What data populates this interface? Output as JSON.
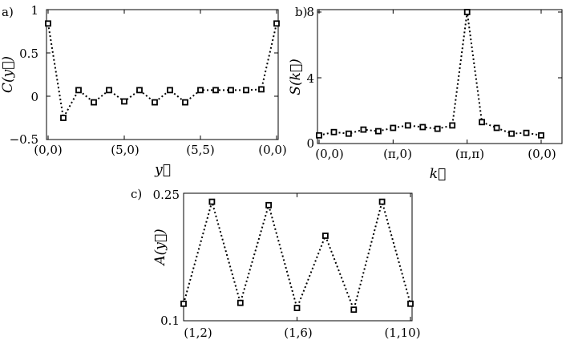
{
  "chart_data": [
    {
      "type": "line",
      "panel_label": "a)",
      "xlabel": "y⃗",
      "ylabel": "C(y⃗)",
      "ylim": [
        -0.5,
        1
      ],
      "y_ticks": [
        "1",
        "0.5",
        "0",
        "−0.5"
      ],
      "y_tick_values": [
        1,
        0.5,
        0,
        -0.5
      ],
      "x_tick_labels": [
        "(0,0)",
        "(5,0)",
        "(5,5)",
        "(0,0)"
      ],
      "x_tick_indices": [
        0,
        5,
        10,
        15
      ],
      "x": [
        0,
        1,
        2,
        3,
        4,
        5,
        6,
        7,
        8,
        9,
        10,
        11,
        12,
        13,
        14,
        15
      ],
      "values": [
        0.84,
        -0.25,
        0.07,
        -0.07,
        0.07,
        -0.06,
        0.07,
        -0.07,
        0.07,
        -0.07,
        0.07,
        0.07,
        0.07,
        0.07,
        0.08,
        0.84
      ],
      "marker": "square",
      "line_style": "dotted",
      "color": "#000000"
    },
    {
      "type": "line",
      "panel_label": "b)",
      "xlabel": "k⃗",
      "ylabel": "S(k⃗)",
      "ylim": [
        0,
        8
      ],
      "y_ticks": [
        "8",
        "4",
        "0"
      ],
      "y_tick_values": [
        8,
        4,
        0
      ],
      "x_tick_labels": [
        "(0,0)",
        "(π,0)",
        "(π,π)",
        "(0,0)"
      ],
      "x_tick_indices": [
        0,
        5,
        10,
        15
      ],
      "x": [
        0,
        1,
        2,
        3,
        4,
        5,
        6,
        7,
        8,
        9,
        10,
        11,
        12,
        13,
        14,
        15
      ],
      "values": [
        0.5,
        0.7,
        0.6,
        0.85,
        0.75,
        0.95,
        1.1,
        1.0,
        0.9,
        1.1,
        8.0,
        1.3,
        0.95,
        0.6,
        0.65,
        0.5
      ],
      "marker": "square",
      "line_style": "dotted",
      "color": "#000000"
    },
    {
      "type": "line",
      "panel_label": "c)",
      "xlabel": "",
      "ylabel": "A(y⃗)",
      "ylim": [
        0.1,
        0.25
      ],
      "y_ticks": [
        "0.25",
        "0.1"
      ],
      "y_tick_values": [
        0.25,
        0.1
      ],
      "x_tick_labels": [
        "(1,2)",
        "(1,6)",
        "(1,10)"
      ],
      "x_tick_indices": [
        0,
        4,
        8
      ],
      "x": [
        0,
        1,
        2,
        3,
        4,
        5,
        6,
        7,
        8
      ],
      "values": [
        0.12,
        0.24,
        0.121,
        0.236,
        0.115,
        0.2,
        0.113,
        0.24,
        0.12
      ],
      "marker": "square",
      "line_style": "dotted",
      "color": "#000000"
    }
  ]
}
